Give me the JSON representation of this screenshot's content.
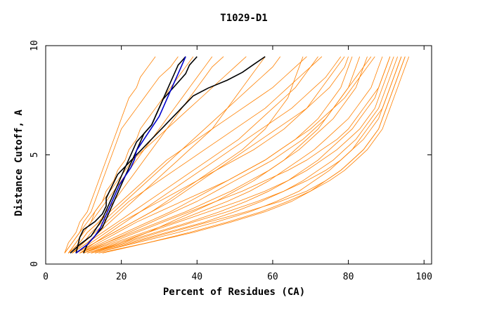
{
  "chart_data": {
    "type": "line",
    "title": "T1029-D1",
    "xlabel": "Percent of Residues (CA)",
    "ylabel": "Distance Cutoff, A",
    "xlim": [
      0,
      102
    ],
    "ylim": [
      0,
      10
    ],
    "x_ticks": [
      0,
      20,
      40,
      60,
      80,
      100
    ],
    "y_ticks": [
      0,
      5,
      10
    ],
    "grid": false,
    "colors": {
      "models": "#ff8000",
      "highlight_black": "#000000",
      "highlight_blue": "#0000cc",
      "axes": "#000000"
    },
    "y_grid_values": [
      0.5,
      1,
      1.5,
      2,
      2.5,
      3,
      3.5,
      4,
      4.5,
      5,
      5.5,
      6,
      6.5,
      7,
      7.5,
      8,
      8.5,
      9,
      9.5
    ],
    "series": [
      {
        "group": "models",
        "x": [
          5,
          7,
          9,
          10,
          12,
          13,
          14,
          15,
          16,
          17,
          18,
          19,
          20,
          22,
          24,
          26,
          28,
          30,
          33,
          35
        ]
      },
      {
        "group": "models",
        "x": [
          6,
          8,
          10,
          12,
          13,
          15,
          16,
          18,
          19,
          21,
          22,
          24,
          25,
          27,
          29,
          31,
          33,
          35,
          37,
          39
        ]
      },
      {
        "group": "models",
        "x": [
          5,
          6,
          8,
          9,
          11,
          12,
          13,
          14,
          15,
          16,
          17,
          18,
          19,
          20,
          21,
          22,
          24,
          25,
          27,
          29
        ]
      },
      {
        "group": "models",
        "x": [
          6,
          9,
          11,
          14,
          16,
          18,
          20,
          22,
          24,
          26,
          28,
          30,
          32,
          34,
          36,
          38,
          40,
          42,
          44,
          47
        ]
      },
      {
        "group": "models",
        "x": [
          7,
          11,
          14,
          17,
          20,
          23,
          26,
          29,
          32,
          35,
          38,
          41,
          44,
          46,
          48,
          50,
          52,
          54,
          56,
          58
        ]
      },
      {
        "group": "models",
        "x": [
          8,
          13,
          18,
          23,
          28,
          32,
          36,
          40,
          44,
          48,
          52,
          55,
          58,
          60,
          62,
          64,
          65,
          66,
          67,
          68
        ]
      },
      {
        "group": "models",
        "x": [
          9,
          15,
          21,
          27,
          33,
          38,
          43,
          48,
          53,
          58,
          62,
          66,
          69,
          72,
          74,
          76,
          78,
          79,
          80,
          81
        ]
      },
      {
        "group": "models",
        "x": [
          9,
          16,
          23,
          30,
          37,
          43,
          49,
          54,
          59,
          63,
          67,
          70,
          73,
          76,
          78,
          80,
          82,
          83,
          84,
          85
        ]
      },
      {
        "group": "models",
        "x": [
          10,
          18,
          26,
          34,
          41,
          48,
          54,
          59,
          63,
          67,
          71,
          74,
          77,
          80,
          82,
          84,
          86,
          87,
          88,
          89
        ]
      },
      {
        "group": "models",
        "x": [
          11,
          20,
          29,
          38,
          46,
          53,
          59,
          64,
          68,
          72,
          75,
          78,
          81,
          83,
          85,
          87,
          88,
          89,
          90,
          91
        ]
      },
      {
        "group": "models",
        "x": [
          12,
          22,
          32,
          42,
          50,
          57,
          63,
          68,
          72,
          76,
          79,
          82,
          84,
          86,
          88,
          89,
          90,
          91,
          92,
          93
        ]
      },
      {
        "group": "models",
        "x": [
          13,
          24,
          35,
          45,
          54,
          61,
          67,
          71,
          75,
          78,
          81,
          83,
          85,
          87,
          89,
          90,
          91,
          92,
          93,
          94
        ]
      },
      {
        "group": "models",
        "x": [
          14,
          27,
          39,
          49,
          58,
          65,
          70,
          74,
          78,
          81,
          84,
          86,
          88,
          89,
          90,
          91,
          92,
          93,
          94,
          95
        ]
      },
      {
        "group": "models",
        "x": [
          12,
          20,
          27,
          33,
          39,
          45,
          50,
          55,
          59,
          63,
          66,
          69,
          72,
          74,
          76,
          78,
          80,
          82,
          84,
          86
        ]
      },
      {
        "group": "models",
        "x": [
          10,
          16,
          22,
          28,
          34,
          40,
          45,
          50,
          55,
          60,
          64,
          68,
          71,
          74,
          76,
          78,
          80,
          81,
          82,
          83
        ]
      },
      {
        "group": "models",
        "x": [
          8,
          12,
          16,
          20,
          25,
          30,
          35,
          40,
          45,
          50,
          55,
          59,
          63,
          66,
          69,
          71,
          73,
          75,
          77,
          79
        ]
      },
      {
        "group": "models",
        "x": [
          7,
          10,
          13,
          16,
          19,
          22,
          26,
          30,
          34,
          38,
          42,
          46,
          50,
          54,
          58,
          61,
          64,
          67,
          70,
          73
        ]
      },
      {
        "group": "models",
        "x": [
          6,
          9,
          11,
          14,
          17,
          20,
          23,
          26,
          29,
          32,
          36,
          40,
          44,
          48,
          52,
          56,
          60,
          63,
          66,
          69
        ]
      },
      {
        "group": "models",
        "x": [
          7,
          11,
          15,
          19,
          23,
          27,
          31,
          35,
          39,
          43,
          47,
          51,
          54,
          57,
          60,
          63,
          66,
          68,
          70,
          72
        ]
      },
      {
        "group": "models",
        "x": [
          9,
          14,
          19,
          24,
          30,
          36,
          42,
          48,
          53,
          58,
          62,
          66,
          70,
          73,
          76,
          79,
          81,
          83,
          85,
          87
        ]
      },
      {
        "group": "models",
        "x": [
          11,
          19,
          27,
          35,
          43,
          51,
          58,
          64,
          69,
          73,
          77,
          80,
          83,
          85,
          87,
          88,
          89,
          90,
          91,
          92
        ]
      },
      {
        "group": "models",
        "x": [
          13,
          23,
          33,
          43,
          53,
          62,
          69,
          74,
          78,
          81,
          84,
          86,
          88,
          89,
          90,
          91,
          92,
          93,
          94,
          95
        ]
      },
      {
        "group": "models",
        "x": [
          15,
          27,
          38,
          48,
          57,
          64,
          70,
          75,
          79,
          82,
          85,
          87,
          89,
          90,
          91,
          92,
          93,
          94,
          95,
          96
        ]
      },
      {
        "group": "models",
        "x": [
          8,
          13,
          18,
          23,
          28,
          33,
          37,
          41,
          45,
          49,
          53,
          57,
          61,
          65,
          69,
          72,
          75,
          77,
          79,
          80
        ]
      },
      {
        "group": "models",
        "x": [
          6,
          8,
          10,
          12,
          14,
          16,
          18,
          20,
          22,
          24,
          26,
          28,
          30,
          32,
          34,
          36,
          38,
          40,
          42,
          44
        ]
      },
      {
        "group": "models",
        "x": [
          5,
          7,
          9,
          11,
          13,
          15,
          17,
          19,
          21,
          23,
          26,
          29,
          32,
          35,
          38,
          41,
          44,
          47,
          50,
          53
        ]
      },
      {
        "group": "models",
        "x": [
          10,
          17,
          24,
          31,
          38,
          45,
          52,
          58,
          64,
          69,
          73,
          77,
          80,
          82,
          84,
          86,
          88,
          89,
          90,
          91
        ]
      },
      {
        "group": "models",
        "x": [
          12,
          21,
          30,
          39,
          48,
          56,
          63,
          69,
          74,
          78,
          81,
          84,
          86,
          88,
          89,
          90,
          91,
          92,
          93,
          94
        ]
      },
      {
        "group": "models",
        "x": [
          9,
          13,
          17,
          21,
          25,
          29,
          33,
          37,
          41,
          45,
          49,
          53,
          57,
          61,
          65,
          68,
          71,
          74,
          76,
          78
        ]
      },
      {
        "group": "models",
        "x": [
          7,
          10,
          12,
          15,
          18,
          21,
          24,
          27,
          30,
          33,
          36,
          39,
          42,
          45,
          48,
          51,
          54,
          57,
          60,
          62
        ]
      },
      {
        "group": "highlight_black",
        "x": [
          10,
          11,
          13,
          15,
          16,
          17,
          18,
          19,
          20,
          21,
          22,
          23,
          24,
          25,
          26,
          28,
          29,
          30,
          31,
          33,
          35,
          37,
          38,
          40
        ]
      },
      {
        "group": "highlight_black",
        "x": [
          8,
          8.5,
          9,
          10,
          13,
          15,
          16,
          16,
          17,
          18,
          19,
          21,
          23,
          25,
          27,
          29,
          31,
          33,
          35,
          37,
          39,
          43,
          48,
          52,
          55,
          58
        ]
      },
      {
        "group": "highlight_black",
        "x": [
          6.5,
          9,
          12,
          13.5,
          15,
          16,
          17,
          18,
          19,
          20,
          21,
          22,
          23,
          24,
          26,
          28,
          29,
          30,
          31,
          32,
          33,
          34,
          35,
          37
        ]
      },
      {
        "group": "highlight_blue",
        "x": [
          8,
          11,
          13,
          14.5,
          15.5,
          16.5,
          17.5,
          18.5,
          19.5,
          21,
          22.5,
          23.5,
          24,
          25.5,
          27,
          28.5,
          30,
          31,
          32,
          33,
          34,
          35,
          36,
          37
        ]
      }
    ]
  }
}
